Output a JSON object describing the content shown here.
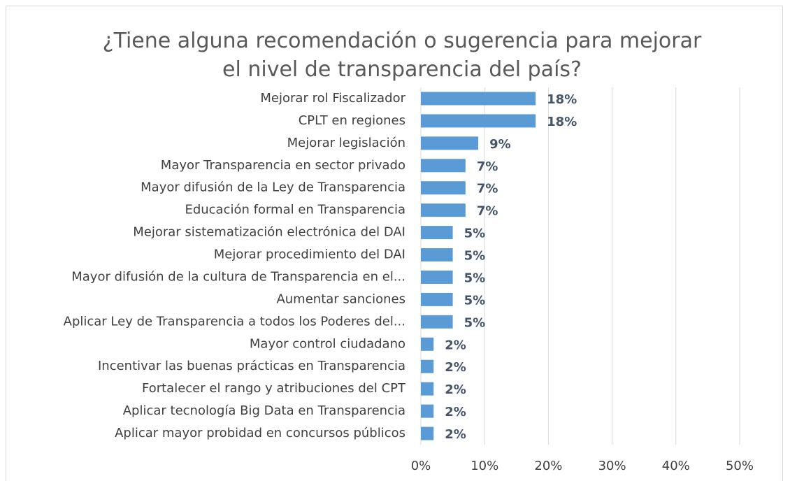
{
  "chart_data": {
    "type": "hbar",
    "title": "¿Tiene alguna recomendación o sugerencia para mejorar el nivel de transparencia del país?",
    "categories": [
      "Mejorar rol Fiscalizador",
      "CPLT en regiones",
      "Mejorar legislación",
      "Mayor Transparencia en sector privado",
      "Mayor difusión de la Ley de Transparencia",
      "Educación formal en Transparencia",
      "Mejorar sistematización electrónica del DAI",
      "Mejorar procedimiento del DAI",
      "Mayor difusión de la cultura de Transparencia en el...",
      "Aumentar sanciones",
      "Aplicar Ley de Transparencia a todos los Poderes del...",
      "Mayor control ciudadano",
      "Incentivar las buenas prácticas en Transparencia",
      "Fortalecer el rango y atribuciones del CPT",
      "Aplicar tecnología Big Data en Transparencia",
      "Aplicar mayor probidad en concursos públicos"
    ],
    "values": [
      18,
      18,
      9,
      7,
      7,
      7,
      5,
      5,
      5,
      5,
      5,
      2,
      2,
      2,
      2,
      2
    ],
    "value_labels": [
      "18%",
      "18%",
      "9%",
      "7%",
      "7%",
      "7%",
      "5%",
      "5%",
      "5%",
      "5%",
      "5%",
      "2%",
      "2%",
      "2%",
      "2%",
      "2%"
    ],
    "color": "#5b9bd5",
    "xlim": [
      0,
      50
    ],
    "xticks": [
      {
        "value": 0,
        "label": "0%"
      },
      {
        "value": 10,
        "label": "10%"
      },
      {
        "value": 20,
        "label": "20%"
      },
      {
        "value": 30,
        "label": "30%"
      },
      {
        "value": 40,
        "label": "40%"
      },
      {
        "value": 50,
        "label": "50%"
      }
    ],
    "grid": true
  }
}
